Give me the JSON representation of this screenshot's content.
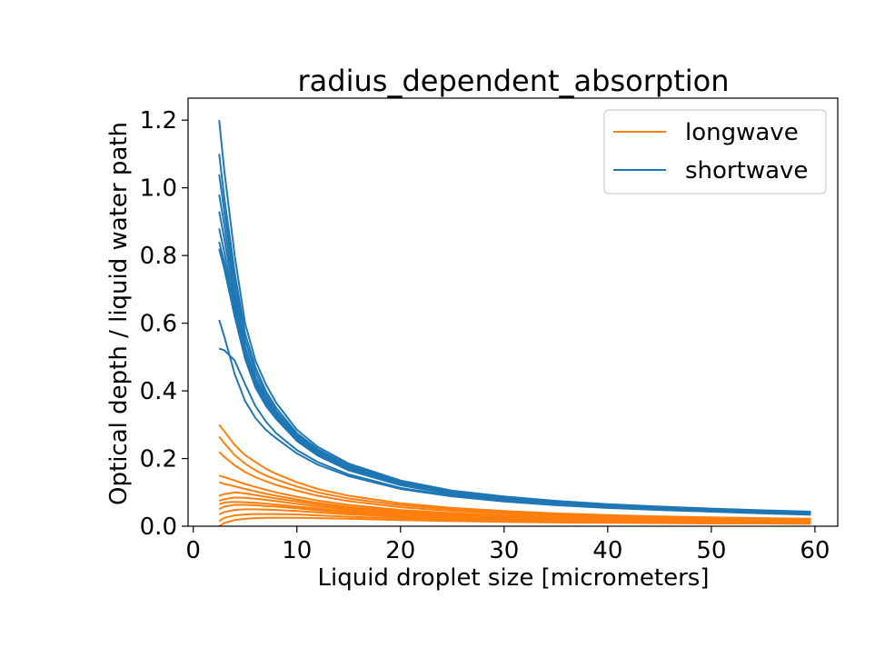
{
  "colors": {
    "longwave": "#ff7f0e",
    "shortwave": "#1f77b4",
    "axes": "#000000",
    "background": "#ffffff"
  },
  "chart_data": {
    "type": "line",
    "title": "radius_dependent_absorption",
    "xlabel": "Liquid droplet size [micrometers]",
    "ylabel": "Optical depth / liquid water path",
    "xlim": [
      -0.5,
      62.2
    ],
    "ylim": [
      0,
      1.265
    ],
    "xticks": [
      0,
      10,
      20,
      30,
      40,
      50,
      60
    ],
    "xtick_labels": [
      "0",
      "10",
      "20",
      "30",
      "40",
      "50",
      "60"
    ],
    "yticks": [
      0.0,
      0.2,
      0.4,
      0.6,
      0.8,
      1.0,
      1.2
    ],
    "ytick_labels": [
      "0.0",
      "0.2",
      "0.4",
      "0.6",
      "0.8",
      "1.0",
      "1.2"
    ],
    "grid": false,
    "legend": {
      "position": "top-right",
      "entries": [
        {
          "label": "longwave",
          "color": "#ff7f0e"
        },
        {
          "label": "shortwave",
          "color": "#1f77b4"
        }
      ]
    },
    "x": [
      2.5,
      3,
      4,
      5,
      6,
      7,
      8,
      10,
      12,
      15,
      20,
      25,
      30,
      35,
      40,
      45,
      50,
      55,
      59.6
    ],
    "series": [
      {
        "group": "shortwave",
        "values": [
          1.2,
          1.05,
          0.8,
          0.6,
          0.49,
          0.42,
          0.365,
          0.285,
          0.235,
          0.185,
          0.135,
          0.105,
          0.088,
          0.075,
          0.065,
          0.058,
          0.052,
          0.047,
          0.043
        ]
      },
      {
        "group": "shortwave",
        "values": [
          1.1,
          0.97,
          0.75,
          0.57,
          0.47,
          0.4,
          0.35,
          0.275,
          0.228,
          0.18,
          0.132,
          0.103,
          0.086,
          0.073,
          0.063,
          0.056,
          0.05,
          0.045,
          0.041
        ]
      },
      {
        "group": "shortwave",
        "values": [
          1.04,
          0.93,
          0.72,
          0.55,
          0.455,
          0.39,
          0.34,
          0.27,
          0.224,
          0.177,
          0.13,
          0.101,
          0.084,
          0.071,
          0.062,
          0.055,
          0.049,
          0.044,
          0.04
        ]
      },
      {
        "group": "shortwave",
        "values": [
          0.98,
          0.89,
          0.69,
          0.53,
          0.44,
          0.38,
          0.335,
          0.266,
          0.22,
          0.174,
          0.128,
          0.099,
          0.082,
          0.07,
          0.061,
          0.054,
          0.048,
          0.043,
          0.039
        ]
      },
      {
        "group": "shortwave",
        "values": [
          0.93,
          0.85,
          0.67,
          0.52,
          0.43,
          0.372,
          0.33,
          0.262,
          0.217,
          0.171,
          0.126,
          0.098,
          0.081,
          0.069,
          0.06,
          0.053,
          0.047,
          0.042,
          0.038
        ]
      },
      {
        "group": "shortwave",
        "values": [
          0.88,
          0.81,
          0.65,
          0.51,
          0.422,
          0.366,
          0.325,
          0.258,
          0.214,
          0.169,
          0.124,
          0.096,
          0.08,
          0.068,
          0.059,
          0.052,
          0.046,
          0.041,
          0.037
        ]
      },
      {
        "group": "shortwave",
        "values": [
          0.84,
          0.78,
          0.63,
          0.5,
          0.415,
          0.36,
          0.32,
          0.255,
          0.211,
          0.167,
          0.122,
          0.095,
          0.079,
          0.067,
          0.058,
          0.051,
          0.046,
          0.041,
          0.037
        ]
      },
      {
        "group": "shortwave",
        "values": [
          0.82,
          0.76,
          0.62,
          0.495,
          0.41,
          0.356,
          0.317,
          0.252,
          0.209,
          0.165,
          0.121,
          0.094,
          0.078,
          0.066,
          0.057,
          0.051,
          0.045,
          0.04,
          0.036
        ]
      },
      {
        "group": "shortwave",
        "values": [
          0.61,
          0.56,
          0.45,
          0.37,
          0.32,
          0.285,
          0.26,
          0.215,
          0.182,
          0.148,
          0.11,
          0.088,
          0.073,
          0.062,
          0.054,
          0.048,
          0.043,
          0.038,
          0.034
        ]
      },
      {
        "group": "shortwave",
        "values": [
          0.525,
          0.52,
          0.49,
          0.42,
          0.355,
          0.31,
          0.275,
          0.225,
          0.19,
          0.153,
          0.113,
          0.09,
          0.074,
          0.063,
          0.055,
          0.049,
          0.044,
          0.039,
          0.035
        ]
      },
      {
        "group": "longwave",
        "values": [
          0.3,
          0.28,
          0.24,
          0.21,
          0.19,
          0.17,
          0.155,
          0.13,
          0.11,
          0.09,
          0.068,
          0.054,
          0.045,
          0.038,
          0.033,
          0.029,
          0.026,
          0.024,
          0.022
        ]
      },
      {
        "group": "longwave",
        "values": [
          0.265,
          0.245,
          0.21,
          0.185,
          0.165,
          0.15,
          0.138,
          0.117,
          0.1,
          0.082,
          0.062,
          0.05,
          0.041,
          0.035,
          0.03,
          0.027,
          0.024,
          0.022,
          0.02
        ]
      },
      {
        "group": "longwave",
        "values": [
          0.22,
          0.205,
          0.18,
          0.16,
          0.145,
          0.133,
          0.122,
          0.105,
          0.09,
          0.074,
          0.056,
          0.045,
          0.037,
          0.032,
          0.028,
          0.025,
          0.022,
          0.02,
          0.018
        ]
      },
      {
        "group": "longwave",
        "values": [
          0.15,
          0.145,
          0.135,
          0.125,
          0.116,
          0.108,
          0.1,
          0.087,
          0.076,
          0.063,
          0.048,
          0.039,
          0.032,
          0.028,
          0.024,
          0.022,
          0.019,
          0.017,
          0.016
        ]
      },
      {
        "group": "longwave",
        "values": [
          0.13,
          0.125,
          0.118,
          0.11,
          0.103,
          0.096,
          0.09,
          0.079,
          0.069,
          0.057,
          0.044,
          0.035,
          0.029,
          0.025,
          0.022,
          0.02,
          0.018,
          0.016,
          0.015
        ]
      },
      {
        "group": "longwave",
        "values": [
          0.09,
          0.095,
          0.1,
          0.097,
          0.092,
          0.087,
          0.082,
          0.073,
          0.064,
          0.053,
          0.041,
          0.033,
          0.027,
          0.023,
          0.02,
          0.018,
          0.016,
          0.015,
          0.014
        ]
      },
      {
        "group": "longwave",
        "values": [
          0.075,
          0.08,
          0.085,
          0.084,
          0.081,
          0.078,
          0.074,
          0.066,
          0.058,
          0.049,
          0.038,
          0.03,
          0.025,
          0.022,
          0.019,
          0.017,
          0.015,
          0.014,
          0.013
        ]
      },
      {
        "group": "longwave",
        "values": [
          0.065,
          0.07,
          0.072,
          0.071,
          0.069,
          0.067,
          0.064,
          0.058,
          0.052,
          0.044,
          0.034,
          0.028,
          0.023,
          0.02,
          0.018,
          0.016,
          0.014,
          0.013,
          0.012
        ]
      },
      {
        "group": "longwave",
        "values": [
          0.05,
          0.058,
          0.063,
          0.063,
          0.062,
          0.06,
          0.058,
          0.053,
          0.047,
          0.04,
          0.031,
          0.025,
          0.021,
          0.018,
          0.016,
          0.014,
          0.013,
          0.012,
          0.011
        ]
      },
      {
        "group": "longwave",
        "values": [
          0.035,
          0.042,
          0.048,
          0.05,
          0.05,
          0.049,
          0.048,
          0.045,
          0.041,
          0.035,
          0.028,
          0.023,
          0.019,
          0.016,
          0.014,
          0.013,
          0.012,
          0.011,
          0.01
        ]
      },
      {
        "group": "longwave",
        "values": [
          0.015,
          0.025,
          0.032,
          0.035,
          0.036,
          0.036,
          0.036,
          0.035,
          0.032,
          0.028,
          0.023,
          0.019,
          0.016,
          0.014,
          0.012,
          0.011,
          0.01,
          0.009,
          0.009
        ]
      },
      {
        "group": "longwave",
        "values": [
          0.0,
          0.01,
          0.018,
          0.022,
          0.024,
          0.025,
          0.025,
          0.025,
          0.024,
          0.022,
          0.018,
          0.015,
          0.013,
          0.011,
          0.01,
          0.009,
          0.008,
          0.008,
          0.007
        ]
      }
    ]
  }
}
